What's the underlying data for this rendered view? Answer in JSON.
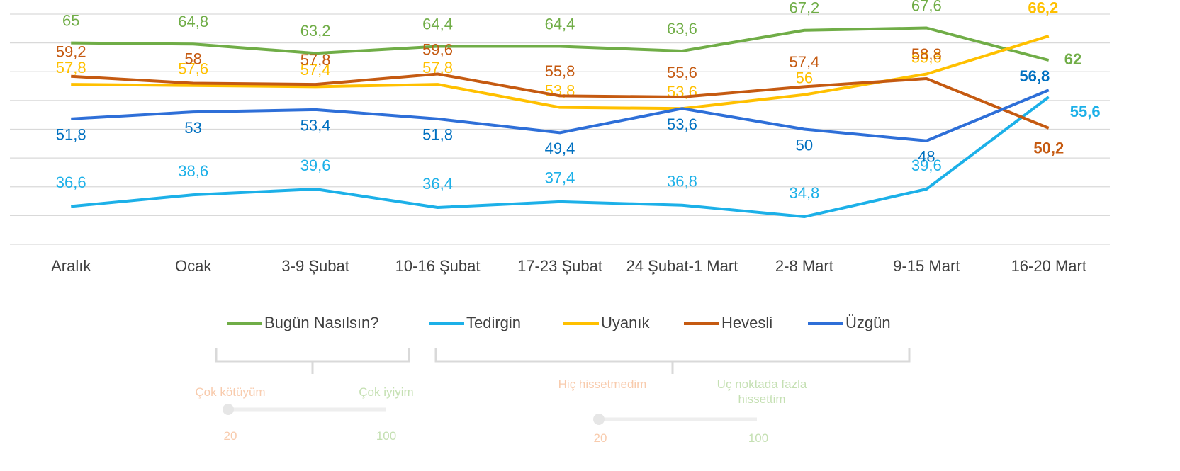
{
  "chart_data": {
    "type": "line",
    "categories": [
      "Aralık",
      "Ocak",
      "3-9 Şubat",
      "10-16 Şubat",
      "17-23 Şubat",
      "24 Şubat-1 Mart",
      "2-8 Mart",
      "9-15 Mart",
      "16-20 Mart"
    ],
    "ylim": [
      30,
      70
    ],
    "yticks": [
      30,
      35,
      40,
      45,
      50,
      55,
      60,
      65,
      70
    ],
    "grid": true,
    "legend": "bottom",
    "series": [
      {
        "name": "Bugün Nasılsın?",
        "color": "#70ad47",
        "label_color": "#70ad47",
        "values": [
          65,
          64.8,
          63.2,
          64.4,
          64.4,
          63.6,
          67.2,
          67.6,
          62
        ],
        "value_labels": [
          "65",
          "64,8",
          "63,2",
          "64,4",
          "64,4",
          "63,6",
          "67,2",
          "67,6",
          "62"
        ]
      },
      {
        "name": "Tedirgin",
        "color": "#1cb0e8",
        "label_color": "#1cb0e8",
        "values": [
          36.6,
          38.6,
          39.6,
          36.4,
          37.4,
          36.8,
          34.8,
          39.6,
          55.6
        ],
        "value_labels": [
          "36,6",
          "38,6",
          "39,6",
          "36,4",
          "37,4",
          "36,8",
          "34,8",
          "39,6",
          "55,6"
        ]
      },
      {
        "name": "Uyanık",
        "color": "#ffc000",
        "label_color": "#ffc000",
        "values": [
          57.8,
          57.6,
          57.4,
          57.8,
          53.8,
          53.6,
          56,
          59.6,
          66.2
        ],
        "value_labels": [
          "57,8",
          "57,6",
          "57,4",
          "57,8",
          "53,8",
          "53,6",
          "56",
          "59,6",
          "66,2"
        ]
      },
      {
        "name": "Hevesli",
        "color": "#c55a11",
        "label_color": "#c55a11",
        "values": [
          59.2,
          58,
          57.8,
          59.6,
          55.8,
          55.6,
          57.4,
          58.8,
          50.2
        ],
        "value_labels": [
          "59,2",
          "58",
          "57,8",
          "59,6",
          "55,8",
          "55,6",
          "57,4",
          "58,8",
          "50,2"
        ]
      },
      {
        "name": "Üzgün",
        "color": "#2e6fd8",
        "label_color": "#0070c0",
        "values": [
          51.8,
          53,
          53.4,
          51.8,
          49.4,
          53.6,
          50,
          48,
          56.8
        ],
        "value_labels": [
          "51,8",
          "53",
          "53,4",
          "51,8",
          "49,4",
          "53,6",
          "50",
          "48",
          "56,8"
        ]
      }
    ]
  },
  "scales": [
    {
      "low_label": "Çok kötüyüm",
      "high_label": "Çok iyiyim",
      "min": 20,
      "max": 100
    },
    {
      "low_label": "Hiç hissetmedim",
      "high_label": "Uç noktada fazla hissettim",
      "min": 20,
      "max": 100
    }
  ]
}
